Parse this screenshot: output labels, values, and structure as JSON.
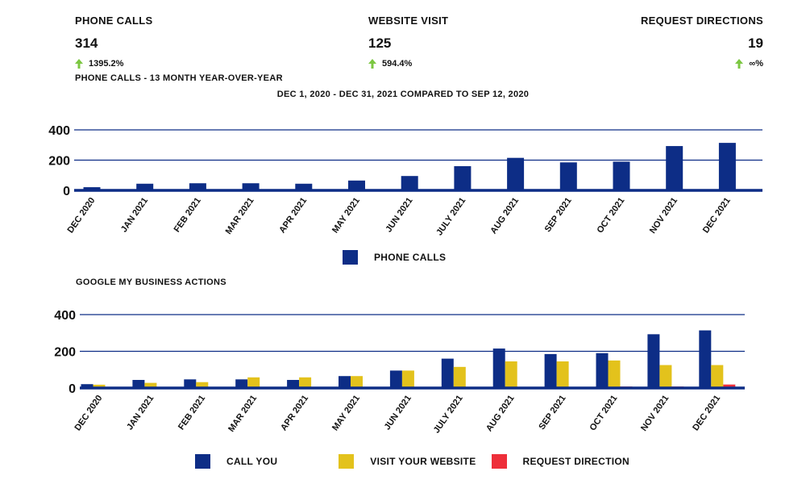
{
  "kpis": [
    {
      "label": "PHONE CALLS",
      "value": "314",
      "change": "1395.2%"
    },
    {
      "label": "WEBSITE VISIT",
      "value": "125",
      "change": "594.4%"
    },
    {
      "label": "REQUEST DIRECTIONS",
      "value": "19",
      "change": "∞%"
    }
  ],
  "colors": {
    "call": "#0d2d86",
    "website": "#e3c21c",
    "direction": "#ee2f3a",
    "arrow": "#7cc742",
    "grid": "#0d2d86"
  },
  "section1": {
    "title": "PHONE CALLS - 13 MONTH YEAR-OVER-YEAR",
    "subtitle": "DEC 1, 2020 - DEC 31, 2021 COMPARED TO SEP 12, 2020",
    "legend": "PHONE CALLS"
  },
  "section2": {
    "title": "GOOGLE MY BUSINESS ACTIONS",
    "legend": [
      "CALL YOU",
      "VISIT YOUR WEBSITE",
      "REQUEST DIRECTION"
    ]
  },
  "chart_data": [
    {
      "type": "bar",
      "categories": [
        "DEC 2020",
        "JAN 2021",
        "FEB 2021",
        "MAR 2021",
        "APR 2021",
        "MAY 2021",
        "JUN 2021",
        "JULY 2021",
        "AUG 2021",
        "SEP 2021",
        "OCT 2021",
        "NOV 2021",
        "DEC 2021"
      ],
      "series": [
        {
          "name": "PHONE CALLS",
          "values": [
            21,
            44,
            47,
            47,
            44,
            65,
            95,
            160,
            215,
            185,
            190,
            293,
            314
          ]
        }
      ],
      "ylim": [
        0,
        400
      ],
      "yticks": [
        0,
        200,
        400
      ],
      "grid": true,
      "legend_position": "bottom"
    },
    {
      "type": "bar",
      "categories": [
        "DEC 2020",
        "JAN 2021",
        "FEB 2021",
        "MAR 2021",
        "APR 2021",
        "MAY 2021",
        "JUN 2021",
        "JULY 2021",
        "AUG 2021",
        "SEP 2021",
        "OCT 2021",
        "NOV 2021",
        "DEC 2021"
      ],
      "series": [
        {
          "name": "CALL YOU",
          "values": [
            21,
            44,
            47,
            47,
            44,
            65,
            95,
            160,
            215,
            185,
            190,
            293,
            314
          ]
        },
        {
          "name": "VISIT YOUR WEBSITE",
          "values": [
            18,
            28,
            32,
            58,
            58,
            65,
            95,
            115,
            145,
            145,
            150,
            125,
            125
          ]
        },
        {
          "name": "REQUEST DIRECTION",
          "values": [
            0,
            0,
            0,
            0,
            0,
            0,
            0,
            0,
            5,
            5,
            8,
            8,
            19
          ]
        }
      ],
      "ylim": [
        0,
        400
      ],
      "yticks": [
        0,
        200,
        400
      ],
      "grid": true,
      "legend_position": "bottom"
    }
  ]
}
